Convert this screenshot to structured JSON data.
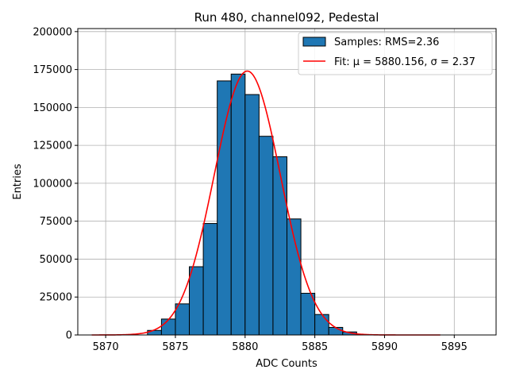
{
  "chart_data": {
    "type": "bar",
    "title": "Run 480, channel092, Pedestal",
    "xlabel": "ADC Counts",
    "ylabel": "Entries",
    "xlim": [
      5868,
      5898
    ],
    "ylim": [
      0,
      202000
    ],
    "xticks": [
      5870,
      5875,
      5880,
      5885,
      5890,
      5895
    ],
    "yticks": [
      0,
      25000,
      50000,
      75000,
      100000,
      125000,
      150000,
      175000,
      200000
    ],
    "grid": true,
    "legend_position": "top-right",
    "histogram": {
      "name": "Samples: RMS=2.36",
      "color": "#1f77b4",
      "edge_color": "#000000",
      "bin_width": 1,
      "bins": [
        5873,
        5874,
        5875,
        5876,
        5877,
        5878,
        5879,
        5880,
        5881,
        5882,
        5883,
        5884,
        5885,
        5886,
        5887
      ],
      "values": [
        3000,
        10500,
        20500,
        45000,
        73500,
        167500,
        172000,
        158500,
        131000,
        117500,
        76500,
        27500,
        13500,
        5000,
        2000
      ]
    },
    "fit": {
      "name": "Fit: μ = 5880.156, σ = 2.37",
      "label_prefix": "Fit: ",
      "mu_label": "μ = 5880.156",
      "sigma_label": "σ = 2.37",
      "color": "#ff0000",
      "mu": 5880.156,
      "sigma": 2.37,
      "amplitude": 174000,
      "x_range": [
        5869,
        5894
      ]
    }
  }
}
